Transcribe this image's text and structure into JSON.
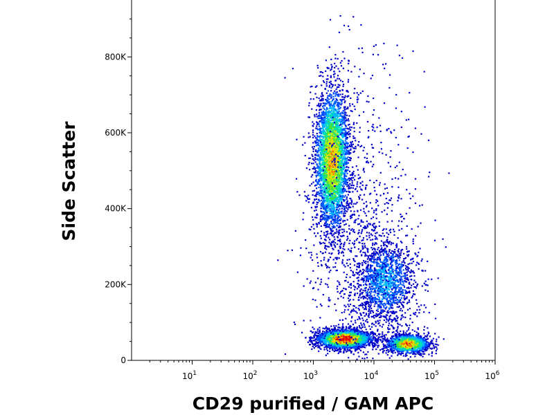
{
  "chart_data": {
    "type": "scatter",
    "style": "density-dot-plot",
    "xlabel": "CD29 purified / GAM APC",
    "ylabel": "Side Scatter",
    "x_scale": "log",
    "xlim": [
      1,
      1000000
    ],
    "ylim": [
      0,
      950000
    ],
    "x_ticks": [
      {
        "value": 10,
        "base": "10",
        "exp": "1"
      },
      {
        "value": 100,
        "base": "10",
        "exp": "2"
      },
      {
        "value": 1000,
        "base": "10",
        "exp": "3"
      },
      {
        "value": 10000,
        "base": "10",
        "exp": "4"
      },
      {
        "value": 100000,
        "base": "10",
        "exp": "5"
      },
      {
        "value": 1000000,
        "base": "10",
        "exp": "6"
      }
    ],
    "y_ticks": [
      {
        "value": 0,
        "label": "0"
      },
      {
        "value": 200000,
        "label": "200K"
      },
      {
        "value": 400000,
        "label": "400K"
      },
      {
        "value": 600000,
        "label": "600K"
      },
      {
        "value": 800000,
        "label": "800K"
      }
    ],
    "density_colors": [
      "#0000c8",
      "#0050ff",
      "#00b4ff",
      "#00e0b0",
      "#40e040",
      "#c8f000",
      "#ffd000",
      "#ff6000",
      "#e00000"
    ],
    "populations": [
      {
        "name": "high side-scatter cluster",
        "x_center": 2000,
        "y_center": 530000,
        "x_spread_decades": 0.14,
        "y_spread": 95000,
        "count": 3500,
        "peak_density": 0.72
      },
      {
        "name": "low side-scatter band left",
        "x_center": 3200,
        "y_center": 58000,
        "x_spread_decades": 0.22,
        "y_spread": 12000,
        "count": 2600,
        "peak_density": 1.0
      },
      {
        "name": "low side-scatter band right",
        "x_center": 35000,
        "y_center": 45000,
        "x_spread_decades": 0.17,
        "y_spread": 12000,
        "count": 1600,
        "peak_density": 0.82
      },
      {
        "name": "intermediate cluster",
        "x_center": 15000,
        "y_center": 210000,
        "x_spread_decades": 0.25,
        "y_spread": 55000,
        "count": 1400,
        "peak_density": 0.28
      },
      {
        "name": "diffuse background",
        "x_center": 6000,
        "y_center": 300000,
        "x_spread_decades": 0.45,
        "y_spread": 220000,
        "count": 1100,
        "peak_density": 0.05
      }
    ]
  }
}
